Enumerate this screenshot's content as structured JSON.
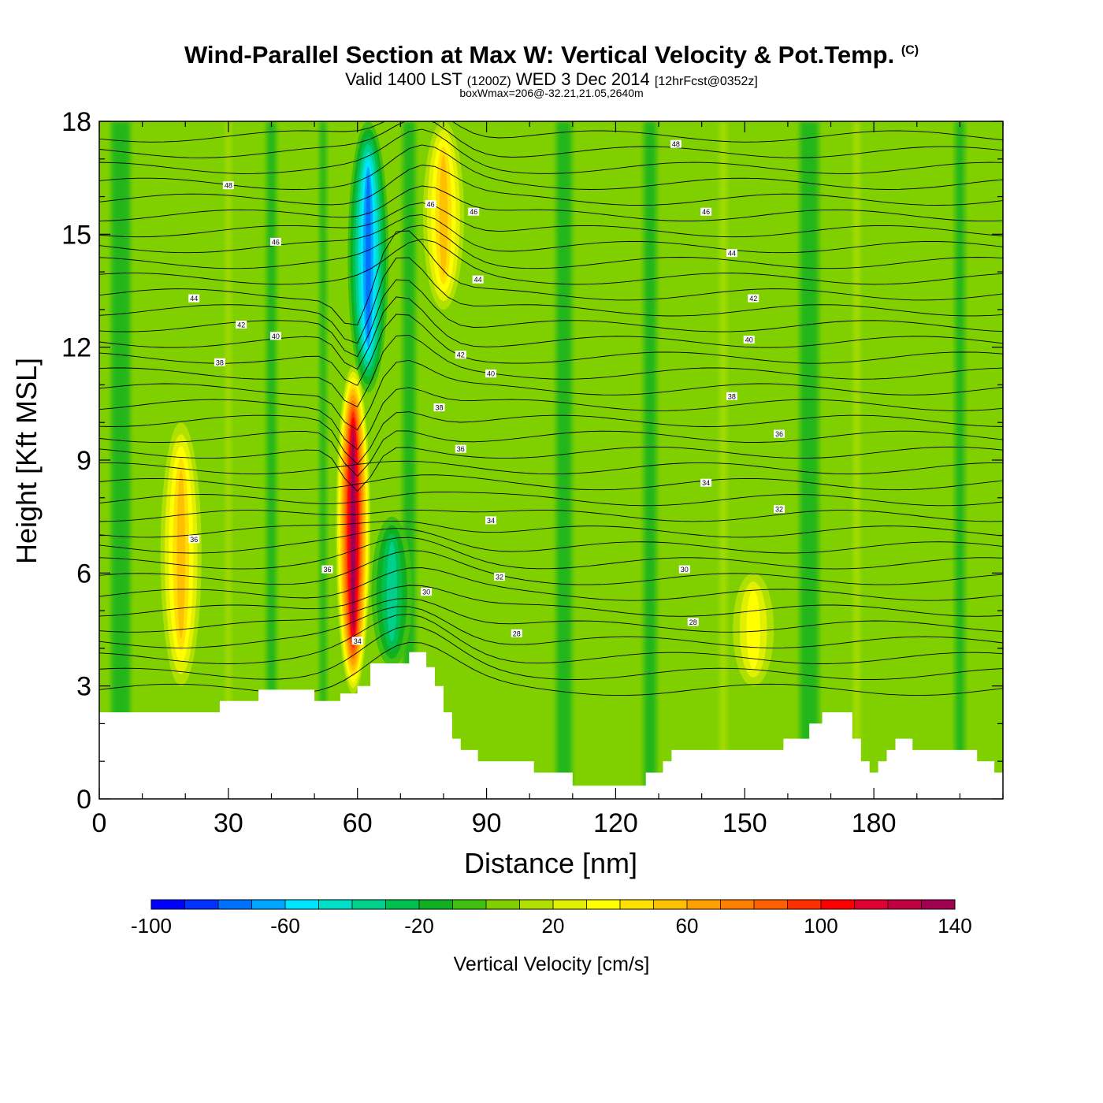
{
  "header": {
    "title": "Wind-Parallel Section at Max W: Vertical Velocity & Pot.Temp.",
    "copyright": "(C)",
    "valid_prefix": "Valid 1400 LST",
    "valid_utc": "(1200Z)",
    "valid_date": "WED 3 Dec 2014",
    "forecast": "[12hrFcst@0352z]",
    "box_info": "boxWmax=206@-32.21,21.05,2640m"
  },
  "chart_data": {
    "type": "heatmap",
    "title": "Wind-Parallel Section at Max W: Vertical Velocity & Pot.Temp.",
    "xlabel": "Distance [nm]",
    "ylabel": "Height [Kft MSL]",
    "xlim": [
      0,
      210
    ],
    "ylim": [
      0,
      18
    ],
    "xticks": [
      0,
      30,
      60,
      90,
      120,
      150,
      180
    ],
    "yticks": [
      0,
      3,
      6,
      9,
      12,
      15,
      18
    ],
    "colorbar": {
      "label": "Vertical Velocity [cm/s]",
      "range": [
        -100,
        140
      ],
      "step": 10,
      "tick_labels": [
        "-100",
        "-60",
        "-20",
        "20",
        "60",
        "100",
        "140"
      ],
      "colors": [
        "#0000ff",
        "#0033ff",
        "#0070ff",
        "#00a5ff",
        "#00e5ff",
        "#00e0c8",
        "#00d08c",
        "#00c050",
        "#10b020",
        "#40c010",
        "#80d000",
        "#b0e000",
        "#e0f000",
        "#ffff00",
        "#ffe000",
        "#ffc000",
        "#ffa000",
        "#ff8000",
        "#ff6000",
        "#ff3000",
        "#ff0000",
        "#e00030",
        "#c00040",
        "#a00050"
      ]
    },
    "features": [
      {
        "name": "downdraft core",
        "x": 62.5,
        "y_range": [
          10.8,
          18
        ],
        "w": -80
      },
      {
        "name": "updraft core",
        "x": 59,
        "y_range": [
          2.8,
          11.5
        ],
        "w": 130
      },
      {
        "name": "upper updraft plume",
        "x": 80,
        "y_range": [
          13,
          18
        ],
        "w": 50
      },
      {
        "name": "left updraft column",
        "x": 19,
        "y_range": [
          3,
          10
        ],
        "w": 45
      },
      {
        "name": "lee downdraft",
        "x": 68,
        "y_range": [
          3.5,
          7.5
        ],
        "w": -35
      },
      {
        "name": "right weak updraft",
        "x": 152,
        "y_range": [
          3,
          6
        ],
        "w": 30
      }
    ],
    "terrain": [
      [
        0,
        2.3
      ],
      [
        28,
        2.3
      ],
      [
        28,
        2.6
      ],
      [
        37,
        2.6
      ],
      [
        37,
        2.9
      ],
      [
        50,
        2.9
      ],
      [
        50,
        2.6
      ],
      [
        56,
        2.6
      ],
      [
        56,
        2.8
      ],
      [
        60,
        2.8
      ],
      [
        60,
        3.0
      ],
      [
        63,
        3.0
      ],
      [
        63,
        3.6
      ],
      [
        72,
        3.6
      ],
      [
        72,
        3.9
      ],
      [
        76,
        3.9
      ],
      [
        76,
        3.5
      ],
      [
        78,
        3.5
      ],
      [
        78,
        3.0
      ],
      [
        80,
        3.0
      ],
      [
        80,
        2.3
      ],
      [
        82,
        2.3
      ],
      [
        82,
        1.6
      ],
      [
        84,
        1.6
      ],
      [
        84,
        1.3
      ],
      [
        88,
        1.3
      ],
      [
        88,
        1.0
      ],
      [
        101,
        1.0
      ],
      [
        101,
        0.7
      ],
      [
        110,
        0.7
      ],
      [
        110,
        0.35
      ],
      [
        127,
        0.35
      ],
      [
        127,
        0.7
      ],
      [
        131,
        0.7
      ],
      [
        131,
        1.0
      ],
      [
        133,
        1.0
      ],
      [
        133,
        1.3
      ],
      [
        159,
        1.3
      ],
      [
        159,
        1.6
      ],
      [
        165,
        1.6
      ],
      [
        165,
        2.0
      ],
      [
        168,
        2.0
      ],
      [
        168,
        2.3
      ],
      [
        175,
        2.3
      ],
      [
        175,
        1.6
      ],
      [
        177,
        1.6
      ],
      [
        177,
        1.0
      ],
      [
        179,
        1.0
      ],
      [
        179,
        0.7
      ],
      [
        181,
        0.7
      ],
      [
        181,
        1.0
      ],
      [
        183,
        1.0
      ],
      [
        183,
        1.3
      ],
      [
        185,
        1.3
      ],
      [
        185,
        1.6
      ],
      [
        189,
        1.6
      ],
      [
        189,
        1.3
      ],
      [
        204,
        1.3
      ],
      [
        204,
        1.0
      ],
      [
        208,
        1.0
      ],
      [
        208,
        0.7
      ],
      [
        210,
        0.7
      ]
    ],
    "theta_contours": [
      {
        "value": "28",
        "label_x": 97,
        "label_y": 4.4
      },
      {
        "value": "28",
        "label_x": 138,
        "label_y": 4.7
      },
      {
        "value": "30",
        "label_x": 76,
        "label_y": 5.5
      },
      {
        "value": "30",
        "label_x": 136,
        "label_y": 6.1
      },
      {
        "value": "32",
        "label_x": 93,
        "label_y": 5.9
      },
      {
        "value": "32",
        "label_x": 158,
        "label_y": 7.7
      },
      {
        "value": "34",
        "label_x": 60,
        "label_y": 4.2
      },
      {
        "value": "34",
        "label_x": 91,
        "label_y": 7.4
      },
      {
        "value": "34",
        "label_x": 141,
        "label_y": 8.4
      },
      {
        "value": "36",
        "label_x": 22,
        "label_y": 6.9
      },
      {
        "value": "36",
        "label_x": 53,
        "label_y": 6.1
      },
      {
        "value": "36",
        "label_x": 84,
        "label_y": 9.3
      },
      {
        "value": "36",
        "label_x": 158,
        "label_y": 9.7
      },
      {
        "value": "38",
        "label_x": 28,
        "label_y": 11.6
      },
      {
        "value": "38",
        "label_x": 79,
        "label_y": 10.4
      },
      {
        "value": "38",
        "label_x": 147,
        "label_y": 10.7
      },
      {
        "value": "40",
        "label_x": 41,
        "label_y": 12.3
      },
      {
        "value": "40",
        "label_x": 91,
        "label_y": 11.3
      },
      {
        "value": "40",
        "label_x": 151,
        "label_y": 12.2
      },
      {
        "value": "42",
        "label_x": 33,
        "label_y": 12.6
      },
      {
        "value": "42",
        "label_x": 84,
        "label_y": 11.8
      },
      {
        "value": "42",
        "label_x": 152,
        "label_y": 13.3
      },
      {
        "value": "44",
        "label_x": 22,
        "label_y": 13.3
      },
      {
        "value": "44",
        "label_x": 88,
        "label_y": 13.8
      },
      {
        "value": "44",
        "label_x": 147,
        "label_y": 14.5
      },
      {
        "value": "46",
        "label_x": 41,
        "label_y": 14.8
      },
      {
        "value": "46",
        "label_x": 77,
        "label_y": 15.8
      },
      {
        "value": "46",
        "label_x": 87,
        "label_y": 15.6
      },
      {
        "value": "46",
        "label_x": 141,
        "label_y": 15.6
      },
      {
        "value": "48",
        "label_x": 30,
        "label_y": 16.3
      },
      {
        "value": "48",
        "label_x": 134,
        "label_y": 17.4
      }
    ]
  }
}
